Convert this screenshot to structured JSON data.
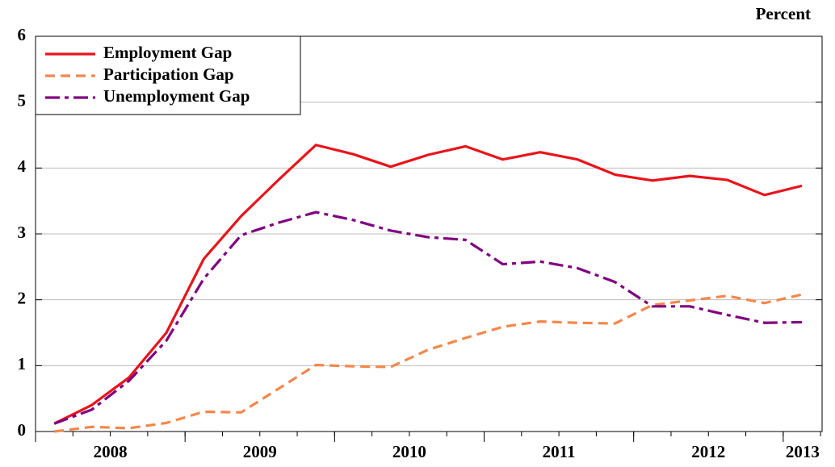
{
  "chart_data": {
    "type": "line",
    "unit_label": "Percent",
    "xlim": [
      2008,
      2013.26
    ],
    "xticks": [
      {
        "value": 2008.5,
        "label": "2008"
      },
      {
        "value": 2009.5,
        "label": "2009"
      },
      {
        "value": 2010.5,
        "label": "2010"
      },
      {
        "value": 2011.5,
        "label": "2011"
      },
      {
        "value": 2012.5,
        "label": "2012"
      },
      {
        "value": 2013.13,
        "label": "2013"
      }
    ],
    "x_boundary_ticks": [
      2008,
      2009,
      2010,
      2011,
      2012,
      2013
    ],
    "x_minor_step": 0.25,
    "ylim": [
      0,
      6
    ],
    "yticks": [
      0,
      1,
      2,
      3,
      4,
      5,
      6
    ],
    "grid": true,
    "legend": "top-left",
    "x": [
      2008.125,
      2008.375,
      2008.625,
      2008.875,
      2009.125,
      2009.375,
      2009.625,
      2009.875,
      2010.125,
      2010.375,
      2010.625,
      2010.875,
      2011.125,
      2011.375,
      2011.625,
      2011.875,
      2012.125,
      2012.375,
      2012.625,
      2012.875,
      2013.125
    ],
    "series": [
      {
        "name": "Employment Gap",
        "color": "#e8141b",
        "line_style": "solid",
        "values": [
          0.12,
          0.4,
          0.82,
          1.5,
          2.62,
          3.27,
          3.82,
          4.35,
          4.21,
          4.02,
          4.2,
          4.33,
          4.13,
          4.24,
          4.13,
          3.9,
          3.81,
          3.88,
          3.82,
          3.59,
          3.73
        ]
      },
      {
        "name": "Participation Gap",
        "color": "#f4874b",
        "line_style": "dashed",
        "values": [
          0,
          0.07,
          0.05,
          0.13,
          0.3,
          0.29,
          0.65,
          1.01,
          0.99,
          0.98,
          1.24,
          1.42,
          1.59,
          1.67,
          1.65,
          1.64,
          1.92,
          1.99,
          2.06,
          1.95,
          2.08
        ]
      },
      {
        "name": "Unemployment Gap",
        "color": "#800080",
        "line_style": "dashdot",
        "values": [
          0.12,
          0.33,
          0.77,
          1.38,
          2.32,
          2.98,
          3.17,
          3.33,
          3.21,
          3.05,
          2.95,
          2.91,
          2.54,
          2.58,
          2.48,
          2.27,
          1.9,
          1.9,
          1.77,
          1.65,
          1.66
        ]
      }
    ]
  }
}
